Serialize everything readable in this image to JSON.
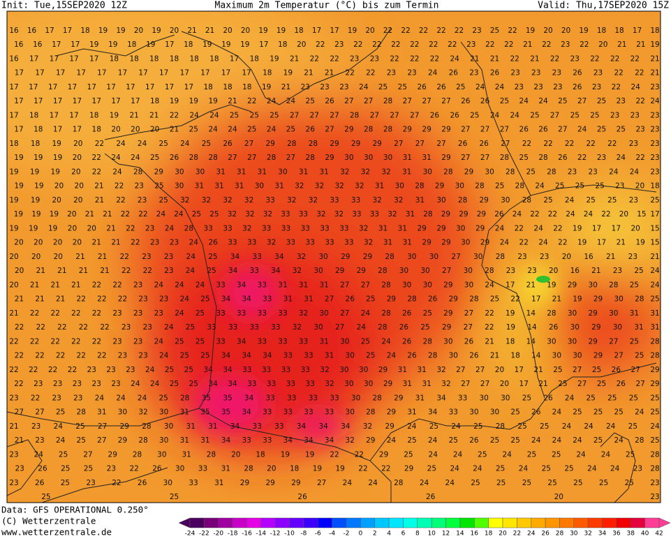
{
  "header": {
    "init": "Init: Tue,15SEP2020 12Z",
    "title": "Maximum 2m Temperatur (°C) bis zum Termin",
    "valid": "Valid: Thu,17SEP2020 15Z"
  },
  "map": {
    "rows": [
      [
        16,
        16,
        17,
        17,
        18,
        19,
        19,
        20,
        19,
        20,
        21,
        21,
        20,
        20,
        19,
        19,
        18,
        17,
        17,
        19,
        20,
        22,
        22,
        22,
        22,
        22,
        23,
        25,
        22,
        19,
        20,
        20,
        19,
        18,
        18,
        17,
        18
      ],
      [
        16,
        16,
        17,
        17,
        19,
        19,
        18,
        19,
        17,
        18,
        19,
        19,
        19,
        17,
        18,
        20,
        22,
        23,
        22,
        22,
        22,
        22,
        22,
        22,
        23,
        22,
        22,
        21,
        22,
        23,
        22,
        20,
        21,
        21,
        19
      ],
      [
        16,
        17,
        17,
        17,
        17,
        18,
        18,
        18,
        18,
        18,
        18,
        17,
        18,
        19,
        21,
        22,
        22,
        23,
        23,
        22,
        22,
        22,
        24,
        21,
        21,
        22,
        21,
        22,
        23,
        22,
        22,
        22,
        21
      ],
      [
        17,
        17,
        17,
        17,
        17,
        17,
        17,
        17,
        17,
        17,
        17,
        17,
        18,
        19,
        21,
        21,
        22,
        22,
        23,
        23,
        24,
        26,
        23,
        26,
        23,
        23,
        23,
        26,
        23,
        22,
        22,
        21
      ],
      [
        17,
        17,
        17,
        17,
        17,
        17,
        17,
        17,
        17,
        17,
        18,
        18,
        18,
        19,
        21,
        23,
        23,
        23,
        24,
        25,
        25,
        26,
        26,
        25,
        24,
        24,
        23,
        23,
        23,
        26,
        23,
        22,
        24,
        23
      ],
      [
        17,
        17,
        17,
        17,
        17,
        17,
        17,
        18,
        19,
        19,
        19,
        21,
        22,
        24,
        24,
        25,
        26,
        27,
        27,
        28,
        27,
        27,
        27,
        26,
        26,
        25,
        24,
        24,
        25,
        27,
        25,
        23,
        22,
        24
      ],
      [
        17,
        18,
        17,
        17,
        18,
        19,
        21,
        21,
        22,
        24,
        24,
        25,
        25,
        25,
        27,
        27,
        27,
        28,
        27,
        27,
        27,
        26,
        26,
        25,
        24,
        24,
        25,
        27,
        25,
        25,
        23,
        23,
        23
      ],
      [
        17,
        18,
        17,
        17,
        18,
        20,
        20,
        20,
        21,
        25,
        24,
        24,
        25,
        24,
        25,
        26,
        27,
        29,
        28,
        28,
        29,
        29,
        29,
        27,
        27,
        27,
        26,
        26,
        27,
        24,
        25,
        25,
        23,
        23
      ],
      [
        18,
        18,
        19,
        20,
        22,
        24,
        24,
        25,
        24,
        25,
        26,
        27,
        29,
        28,
        28,
        29,
        29,
        29,
        27,
        27,
        27,
        26,
        26,
        27,
        22,
        22,
        22,
        22,
        22,
        23,
        23
      ],
      [
        19,
        19,
        19,
        20,
        22,
        24,
        24,
        25,
        26,
        28,
        28,
        27,
        27,
        28,
        27,
        28,
        29,
        30,
        30,
        30,
        31,
        31,
        29,
        27,
        27,
        28,
        25,
        28,
        26,
        22,
        23,
        24,
        22,
        23
      ],
      [
        19,
        19,
        19,
        20,
        22,
        24,
        28,
        29,
        30,
        30,
        31,
        31,
        31,
        30,
        31,
        31,
        32,
        32,
        32,
        31,
        30,
        28,
        29,
        30,
        28,
        25,
        28,
        23,
        23,
        24,
        24,
        23
      ],
      [
        19,
        19,
        20,
        20,
        21,
        22,
        23,
        25,
        30,
        31,
        31,
        31,
        30,
        31,
        32,
        32,
        32,
        32,
        31,
        30,
        28,
        29,
        30,
        28,
        25,
        28,
        24,
        25,
        25,
        25,
        23,
        20,
        18
      ],
      [
        19,
        19,
        20,
        20,
        21,
        22,
        23,
        25,
        32,
        32,
        32,
        32,
        33,
        32,
        32,
        33,
        33,
        32,
        32,
        31,
        30,
        28,
        29,
        30,
        28,
        25,
        24,
        25,
        25,
        23,
        25
      ],
      [
        19,
        19,
        19,
        20,
        21,
        21,
        22,
        22,
        24,
        24,
        25,
        25,
        32,
        32,
        32,
        33,
        33,
        32,
        32,
        33,
        33,
        32,
        31,
        28,
        29,
        29,
        29,
        26,
        24,
        22,
        22,
        24,
        24,
        22,
        20,
        15,
        17
      ],
      [
        19,
        19,
        19,
        20,
        20,
        21,
        22,
        23,
        24,
        28,
        33,
        33,
        32,
        33,
        33,
        33,
        33,
        33,
        32,
        31,
        31,
        29,
        29,
        30,
        29,
        24,
        22,
        24,
        22,
        19,
        17,
        17,
        20,
        15
      ],
      [
        20,
        20,
        20,
        20,
        21,
        21,
        22,
        23,
        23,
        24,
        26,
        33,
        33,
        32,
        33,
        33,
        33,
        33,
        32,
        31,
        31,
        29,
        29,
        30,
        29,
        24,
        22,
        24,
        22,
        19,
        17,
        21,
        19,
        15
      ],
      [
        20,
        20,
        20,
        21,
        21,
        22,
        23,
        23,
        24,
        25,
        34,
        33,
        34,
        32,
        30,
        29,
        29,
        28,
        30,
        30,
        27,
        30,
        28,
        23,
        23,
        20,
        16,
        21,
        23,
        21
      ],
      [
        20,
        21,
        21,
        21,
        21,
        22,
        22,
        23,
        24,
        25,
        34,
        33,
        34,
        32,
        30,
        29,
        29,
        28,
        30,
        30,
        27,
        30,
        28,
        23,
        23,
        20,
        16,
        21,
        23,
        25,
        24
      ],
      [
        20,
        21,
        21,
        21,
        22,
        22,
        23,
        24,
        24,
        24,
        33,
        34,
        33,
        31,
        31,
        31,
        27,
        27,
        28,
        30,
        30,
        29,
        30,
        24,
        17,
        21,
        19,
        29,
        30,
        28,
        25,
        24
      ],
      [
        21,
        21,
        21,
        22,
        22,
        22,
        23,
        23,
        24,
        25,
        34,
        34,
        33,
        31,
        31,
        27,
        26,
        25,
        29,
        28,
        26,
        29,
        28,
        25,
        22,
        17,
        21,
        19,
        29,
        30,
        28,
        25
      ],
      [
        21,
        22,
        22,
        22,
        22,
        23,
        23,
        23,
        24,
        25,
        33,
        33,
        33,
        33,
        32,
        30,
        27,
        24,
        28,
        26,
        25,
        29,
        27,
        22,
        19,
        14,
        28,
        30,
        29,
        30,
        31,
        31
      ],
      [
        22,
        22,
        22,
        22,
        22,
        23,
        23,
        24,
        25,
        33,
        33,
        33,
        33,
        32,
        30,
        27,
        24,
        28,
        26,
        25,
        29,
        27,
        22,
        19,
        14,
        26,
        30,
        29,
        30,
        31,
        31
      ],
      [
        22,
        22,
        22,
        22,
        22,
        23,
        23,
        24,
        25,
        25,
        33,
        34,
        33,
        33,
        33,
        31,
        30,
        25,
        24,
        26,
        28,
        30,
        26,
        21,
        18,
        14,
        30,
        30,
        29,
        27,
        25,
        28
      ],
      [
        22,
        22,
        22,
        22,
        22,
        23,
        23,
        24,
        25,
        25,
        34,
        34,
        34,
        33,
        33,
        31,
        30,
        25,
        24,
        26,
        28,
        30,
        26,
        21,
        18,
        14,
        30,
        30,
        29,
        27,
        25,
        28
      ],
      [
        22,
        22,
        22,
        22,
        23,
        23,
        23,
        24,
        25,
        25,
        34,
        34,
        33,
        33,
        33,
        33,
        32,
        30,
        30,
        29,
        31,
        31,
        32,
        27,
        27,
        20,
        17,
        21,
        25,
        27,
        25,
        26,
        27,
        29
      ],
      [
        22,
        23,
        23,
        23,
        23,
        23,
        24,
        24,
        25,
        25,
        34,
        34,
        33,
        33,
        33,
        33,
        32,
        30,
        30,
        29,
        31,
        31,
        32,
        27,
        27,
        20,
        17,
        21,
        25,
        27,
        25,
        26,
        27,
        29
      ],
      [
        23,
        22,
        23,
        23,
        24,
        24,
        24,
        25,
        28,
        35,
        35,
        34,
        33,
        33,
        33,
        33,
        30,
        28,
        29,
        31,
        34,
        33,
        30,
        30,
        25,
        26,
        24,
        25,
        25,
        25,
        25
      ],
      [
        27,
        27,
        25,
        28,
        31,
        30,
        32,
        30,
        31,
        35,
        35,
        34,
        33,
        33,
        33,
        33,
        30,
        28,
        29,
        31,
        34,
        33,
        30,
        30,
        25,
        26,
        24,
        25,
        25,
        25,
        24,
        25
      ],
      [
        21,
        23,
        24,
        25,
        27,
        29,
        28,
        30,
        31,
        31,
        34,
        33,
        33,
        34,
        34,
        34,
        32,
        29,
        24,
        25,
        24,
        25,
        28,
        25,
        25,
        24,
        24,
        24,
        25,
        24
      ],
      [
        21,
        23,
        24,
        25,
        27,
        29,
        28,
        30,
        31,
        31,
        34,
        33,
        33,
        34,
        34,
        34,
        32,
        29,
        24,
        25,
        24,
        25,
        26,
        25,
        25,
        24,
        24,
        24,
        25,
        24,
        28,
        25
      ],
      [
        23,
        24,
        25,
        27,
        29,
        28,
        30,
        31,
        28,
        20,
        18,
        19,
        19,
        22,
        22,
        29,
        25,
        24,
        24,
        25,
        24,
        25,
        25,
        24,
        24,
        25,
        28
      ],
      [
        23,
        26,
        25,
        25,
        23,
        22,
        26,
        30,
        33,
        31,
        28,
        20,
        18,
        19,
        19,
        22,
        22,
        29,
        25,
        24,
        24,
        25,
        24,
        25,
        25,
        24,
        24,
        23,
        28
      ],
      [
        23,
        26,
        25,
        23,
        22,
        26,
        30,
        33,
        31,
        29,
        29,
        29,
        27,
        24,
        24,
        28,
        24,
        24,
        25,
        25,
        25,
        25,
        25,
        25,
        25,
        23
      ],
      [
        25,
        25,
        26,
        26,
        20,
        23
      ]
    ]
  },
  "footer": {
    "data": "Data: GFS OPERATIONAL 0.250°",
    "copyright": "(C) Wetterzentrale",
    "url": "www.wetterzentrale.de"
  },
  "legend": {
    "ticks": [
      -24,
      -22,
      -20,
      -18,
      -16,
      -14,
      -12,
      -10,
      -8,
      -6,
      -4,
      -2,
      0,
      2,
      4,
      6,
      8,
      10,
      12,
      14,
      16,
      18,
      20,
      22,
      24,
      26,
      28,
      30,
      32,
      34,
      36,
      38,
      40,
      42
    ],
    "colors": [
      "#4b0060",
      "#7a007a",
      "#a000a0",
      "#c800c8",
      "#e600e6",
      "#b400ff",
      "#8c00ff",
      "#6400ff",
      "#3c00ff",
      "#0000ff",
      "#0050ff",
      "#0078ff",
      "#00a0ff",
      "#00c8ff",
      "#00e6ff",
      "#00ffe6",
      "#00ffb4",
      "#00ff78",
      "#00ff3c",
      "#00e600",
      "#50ff00",
      "#ffff00",
      "#ffe600",
      "#ffc800",
      "#ffaa00",
      "#ff9600",
      "#ff7800",
      "#ff5a00",
      "#ff3c00",
      "#ff1e00",
      "#f00000",
      "#e6003c",
      "#ff3c96"
    ]
  }
}
